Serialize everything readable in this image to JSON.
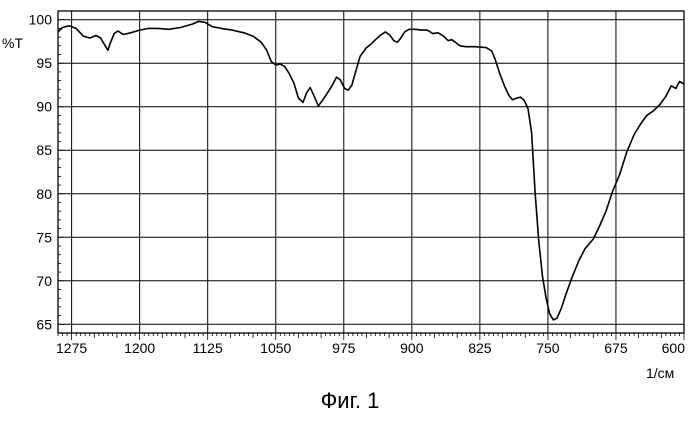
{
  "chart_data": {
    "type": "line",
    "ylabel": "%T",
    "xlabel": "1/см",
    "xlim": [
      1290,
      600
    ],
    "ylim": [
      64,
      101
    ],
    "x_reversed": true,
    "grid": true,
    "x_ticks": [
      "1275",
      "1200",
      "1125",
      "1050",
      "975",
      "900",
      "825",
      "750",
      "675",
      "600"
    ],
    "y_ticks": [
      "100",
      "95",
      "90",
      "85",
      "80",
      "75",
      "70",
      "65"
    ],
    "series": [
      {
        "color": "#000000",
        "points": [
          [
            1290,
            98.6
          ],
          [
            1285,
            99.1
          ],
          [
            1278,
            99.3
          ],
          [
            1270,
            99.0
          ],
          [
            1262,
            98.1
          ],
          [
            1255,
            97.9
          ],
          [
            1248,
            98.2
          ],
          [
            1243,
            97.9
          ],
          [
            1238,
            97.0
          ],
          [
            1235,
            96.5
          ],
          [
            1232,
            97.4
          ],
          [
            1228,
            98.4
          ],
          [
            1224,
            98.7
          ],
          [
            1218,
            98.3
          ],
          [
            1210,
            98.5
          ],
          [
            1200,
            98.8
          ],
          [
            1190,
            99.0
          ],
          [
            1180,
            99.0
          ],
          [
            1168,
            98.9
          ],
          [
            1155,
            99.1
          ],
          [
            1142,
            99.5
          ],
          [
            1135,
            99.8
          ],
          [
            1128,
            99.7
          ],
          [
            1120,
            99.2
          ],
          [
            1110,
            99.0
          ],
          [
            1098,
            98.8
          ],
          [
            1085,
            98.5
          ],
          [
            1075,
            98.1
          ],
          [
            1066,
            97.4
          ],
          [
            1060,
            96.5
          ],
          [
            1055,
            95.2
          ],
          [
            1050,
            94.8
          ],
          [
            1045,
            94.9
          ],
          [
            1040,
            94.6
          ],
          [
            1035,
            93.8
          ],
          [
            1030,
            92.7
          ],
          [
            1025,
            91.0
          ],
          [
            1020,
            90.5
          ],
          [
            1016,
            91.6
          ],
          [
            1012,
            92.2
          ],
          [
            1008,
            91.3
          ],
          [
            1003,
            90.1
          ],
          [
            998,
            90.8
          ],
          [
            993,
            91.6
          ],
          [
            988,
            92.4
          ],
          [
            983,
            93.4
          ],
          [
            979,
            93.1
          ],
          [
            974,
            92.1
          ],
          [
            970,
            91.9
          ],
          [
            966,
            92.5
          ],
          [
            962,
            94.0
          ],
          [
            957,
            95.8
          ],
          [
            950,
            96.8
          ],
          [
            945,
            97.2
          ],
          [
            940,
            97.7
          ],
          [
            935,
            98.2
          ],
          [
            929,
            98.6
          ],
          [
            924,
            98.2
          ],
          [
            920,
            97.6
          ],
          [
            916,
            97.4
          ],
          [
            912,
            97.9
          ],
          [
            908,
            98.6
          ],
          [
            903,
            98.9
          ],
          [
            896,
            98.9
          ],
          [
            890,
            98.8
          ],
          [
            883,
            98.8
          ],
          [
            877,
            98.4
          ],
          [
            871,
            98.5
          ],
          [
            865,
            98.1
          ],
          [
            860,
            97.6
          ],
          [
            856,
            97.7
          ],
          [
            852,
            97.4
          ],
          [
            847,
            97.0
          ],
          [
            841,
            96.9
          ],
          [
            830,
            96.9
          ],
          [
            818,
            96.8
          ],
          [
            812,
            96.4
          ],
          [
            808,
            95.4
          ],
          [
            803,
            93.8
          ],
          [
            798,
            92.4
          ],
          [
            793,
            91.3
          ],
          [
            789,
            90.8
          ],
          [
            784,
            91.0
          ],
          [
            780,
            91.1
          ],
          [
            776,
            90.7
          ],
          [
            772,
            89.8
          ],
          [
            768,
            87.0
          ],
          [
            764,
            80.0
          ],
          [
            760,
            74.5
          ],
          [
            756,
            70.5
          ],
          [
            752,
            68.0
          ],
          [
            748,
            66.2
          ],
          [
            744,
            65.5
          ],
          [
            740,
            65.7
          ],
          [
            735,
            66.9
          ],
          [
            730,
            68.5
          ],
          [
            723,
            70.5
          ],
          [
            716,
            72.3
          ],
          [
            709,
            73.7
          ],
          [
            700,
            74.8
          ],
          [
            693,
            76.3
          ],
          [
            686,
            78.0
          ],
          [
            679,
            80.2
          ],
          [
            671,
            82.2
          ],
          [
            663,
            84.8
          ],
          [
            655,
            86.8
          ],
          [
            648,
            88.0
          ],
          [
            641,
            89.0
          ],
          [
            634,
            89.5
          ],
          [
            627,
            90.2
          ],
          [
            620,
            91.2
          ],
          [
            614,
            92.4
          ],
          [
            609,
            92.1
          ],
          [
            605,
            92.9
          ],
          [
            600,
            92.6
          ]
        ]
      }
    ]
  },
  "caption": "Фиг. 1"
}
